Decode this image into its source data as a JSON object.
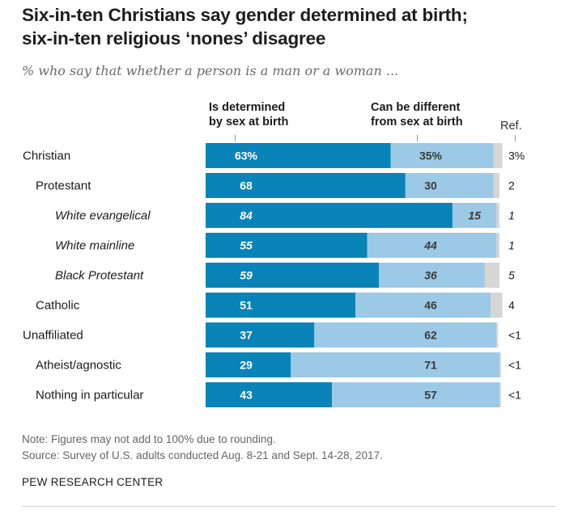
{
  "title_line1": "Six-in-ten Christians say gender determined at birth;",
  "title_line2": "six-in-ten religious ‘nones’ disagree",
  "subtitle": "% who say that whether a person is a man or a woman ...",
  "note": "Note: Figures may not add to 100% due to rounding.",
  "source": "Source: Survey of U.S. adults conducted Aug. 8-21 and Sept. 14-28, 2017.",
  "brand": "PEW RESEARCH CENTER",
  "colors": {
    "determined": "#0a83b8",
    "different": "#9cc9e6",
    "refused": "#d6d6d6"
  },
  "chart_data": {
    "type": "bar",
    "orientation": "horizontal",
    "stacked": true,
    "series_labels": {
      "determined_line1": "Is determined",
      "determined_line2": "by sex at birth",
      "different_line1": "Can be different",
      "different_line2": "from sex at birth",
      "refused": "Ref."
    },
    "rows": [
      {
        "label": "Christian",
        "indent": 0,
        "italic": false,
        "determined": 63,
        "different": 35,
        "refused": 3,
        "determined_label": "63%",
        "different_label": "35%",
        "refused_label": "3%"
      },
      {
        "label": "Protestant",
        "indent": 1,
        "italic": false,
        "determined": 68,
        "different": 30,
        "refused": 2,
        "determined_label": "68",
        "different_label": "30",
        "refused_label": "2"
      },
      {
        "label": "White evangelical",
        "indent": 2,
        "italic": true,
        "determined": 84,
        "different": 15,
        "refused": 1,
        "determined_label": "84",
        "different_label": "15",
        "refused_label": "1"
      },
      {
        "label": "White mainline",
        "indent": 2,
        "italic": true,
        "determined": 55,
        "different": 44,
        "refused": 1,
        "determined_label": "55",
        "different_label": "44",
        "refused_label": "1"
      },
      {
        "label": "Black Protestant",
        "indent": 2,
        "italic": true,
        "determined": 59,
        "different": 36,
        "refused": 5,
        "determined_label": "59",
        "different_label": "36",
        "refused_label": "5"
      },
      {
        "label": "Catholic",
        "indent": 1,
        "italic": false,
        "determined": 51,
        "different": 46,
        "refused": 4,
        "determined_label": "51",
        "different_label": "46",
        "refused_label": "4"
      },
      {
        "label": "Unaffiliated",
        "indent": 0,
        "italic": false,
        "determined": 37,
        "different": 62,
        "refused": 0.5,
        "determined_label": "37",
        "different_label": "62",
        "refused_label": "<1"
      },
      {
        "label": "Atheist/agnostic",
        "indent": 1,
        "italic": false,
        "determined": 29,
        "different": 71,
        "refused": 0.5,
        "determined_label": "29",
        "different_label": "71",
        "refused_label": "<1"
      },
      {
        "label": "Nothing in particular",
        "indent": 1,
        "italic": false,
        "determined": 43,
        "different": 57,
        "refused": 0.5,
        "determined_label": "43",
        "different_label": "57",
        "refused_label": "<1"
      }
    ]
  }
}
